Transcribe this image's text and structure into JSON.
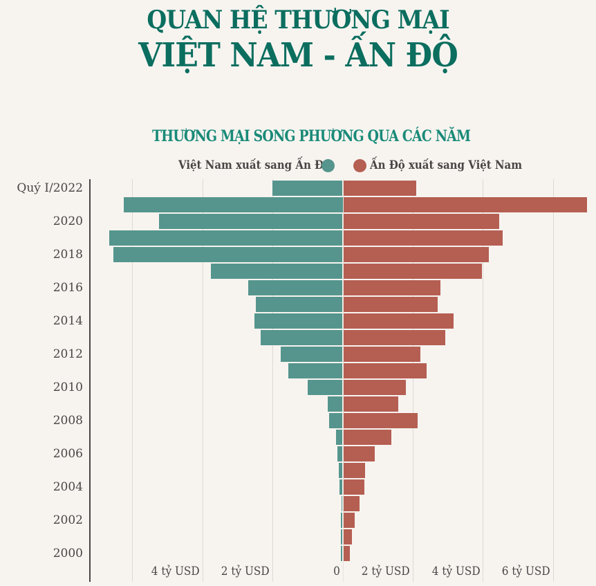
{
  "header": {
    "title_line1": "QUAN HỆ THƯƠNG MẠI",
    "title_line2": "VIỆT NAM - ẤN ĐỘ",
    "subtitle": "THƯƠNG MẠI SONG PHƯƠNG QUA CÁC NĂM"
  },
  "legend": {
    "left_label": "Việt Nam xuất sang Ấn Độ",
    "right_label": "Ấn Độ xuất sang Việt Nam"
  },
  "colors": {
    "background": "#f7f4f0",
    "title": "#0b6e5f",
    "subtitle": "#1a8a78",
    "vn_export": "#55958d",
    "in_export": "#b55e52",
    "text": "#4a4545",
    "grid": "#ddd8d2"
  },
  "axis": {
    "x_ticks": [
      {
        "value": -4,
        "label": "4 tỷ USD"
      },
      {
        "value": -2,
        "label": "2 tỷ USD"
      },
      {
        "value": 0,
        "label": "0"
      },
      {
        "value": 2,
        "label": "2 tỷ USD"
      },
      {
        "value": 4,
        "label": "4 tỷ USD"
      },
      {
        "value": 6,
        "label": "6 tỷ USD"
      }
    ],
    "gridlines": [
      -6,
      -4,
      -2,
      0,
      2,
      4,
      6
    ]
  },
  "chart_data": {
    "type": "bar",
    "orientation": "horizontal-diverging",
    "title": "THƯƠNG MẠI SONG PHƯƠNG QUA CÁC NĂM",
    "xlabel": "tỷ USD",
    "ylabel": "",
    "xlim": [
      -7,
      7
    ],
    "grid": true,
    "legend_position": "top",
    "categories": [
      "Quý I/2022",
      "2021",
      "2020",
      "2019",
      "2018",
      "2017",
      "2016",
      "2015",
      "2014",
      "2013",
      "2012",
      "2011",
      "2010",
      "2009",
      "2008",
      "2007",
      "2006",
      "2005",
      "2004",
      "2003",
      "2002",
      "2001",
      "2000"
    ],
    "category_labels_shown": [
      "Quý I/2022",
      "2020",
      "2018",
      "2016",
      "2014",
      "2012",
      "2010",
      "2008",
      "2006",
      "2004",
      "2002",
      "2000"
    ],
    "series": [
      {
        "name": "Việt Nam xuất sang Ấn Độ",
        "color": "#55958d",
        "side": "left",
        "values": [
          2.0,
          6.25,
          5.23,
          6.66,
          6.53,
          3.76,
          2.69,
          2.47,
          2.51,
          2.34,
          1.77,
          1.55,
          0.99,
          0.43,
          0.39,
          0.19,
          0.15,
          0.1,
          0.09,
          0.03,
          0.05,
          0.05,
          0.05
        ]
      },
      {
        "name": "Ấn Độ xuất sang Việt Nam",
        "color": "#b55e52",
        "side": "right",
        "values": [
          2.09,
          6.96,
          4.45,
          4.54,
          4.16,
          3.96,
          2.78,
          2.69,
          3.15,
          2.91,
          2.19,
          2.38,
          1.78,
          1.56,
          2.12,
          1.38,
          0.89,
          0.62,
          0.6,
          0.47,
          0.33,
          0.24,
          0.19
        ]
      }
    ]
  }
}
